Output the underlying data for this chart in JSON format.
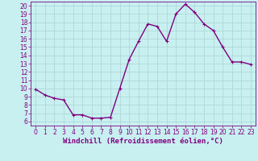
{
  "x": [
    0,
    1,
    2,
    3,
    4,
    5,
    6,
    7,
    8,
    9,
    10,
    11,
    12,
    13,
    14,
    15,
    16,
    17,
    18,
    19,
    20,
    21,
    22,
    23
  ],
  "y": [
    9.9,
    9.2,
    8.8,
    8.6,
    6.8,
    6.8,
    6.4,
    6.4,
    6.5,
    10.0,
    13.5,
    15.7,
    17.8,
    17.5,
    15.7,
    19.0,
    20.2,
    19.2,
    17.8,
    17.0,
    15.0,
    13.2,
    13.2,
    12.9
  ],
  "line_color": "#800080",
  "marker": "+",
  "marker_size": 3,
  "background_color": "#c8f0f0",
  "grid_color": "#b0d8d8",
  "xlabel": "Windchill (Refroidissement éolien,°C)",
  "xlim": [
    -0.5,
    23.5
  ],
  "ylim": [
    5.5,
    20.5
  ],
  "xticks": [
    0,
    1,
    2,
    3,
    4,
    5,
    6,
    7,
    8,
    9,
    10,
    11,
    12,
    13,
    14,
    15,
    16,
    17,
    18,
    19,
    20,
    21,
    22,
    23
  ],
  "yticks": [
    6,
    7,
    8,
    9,
    10,
    11,
    12,
    13,
    14,
    15,
    16,
    17,
    18,
    19,
    20
  ],
  "xlabel_fontsize": 6.5,
  "tick_fontsize": 5.5,
  "line_width": 1.0,
  "marker_edge_width": 0.8
}
